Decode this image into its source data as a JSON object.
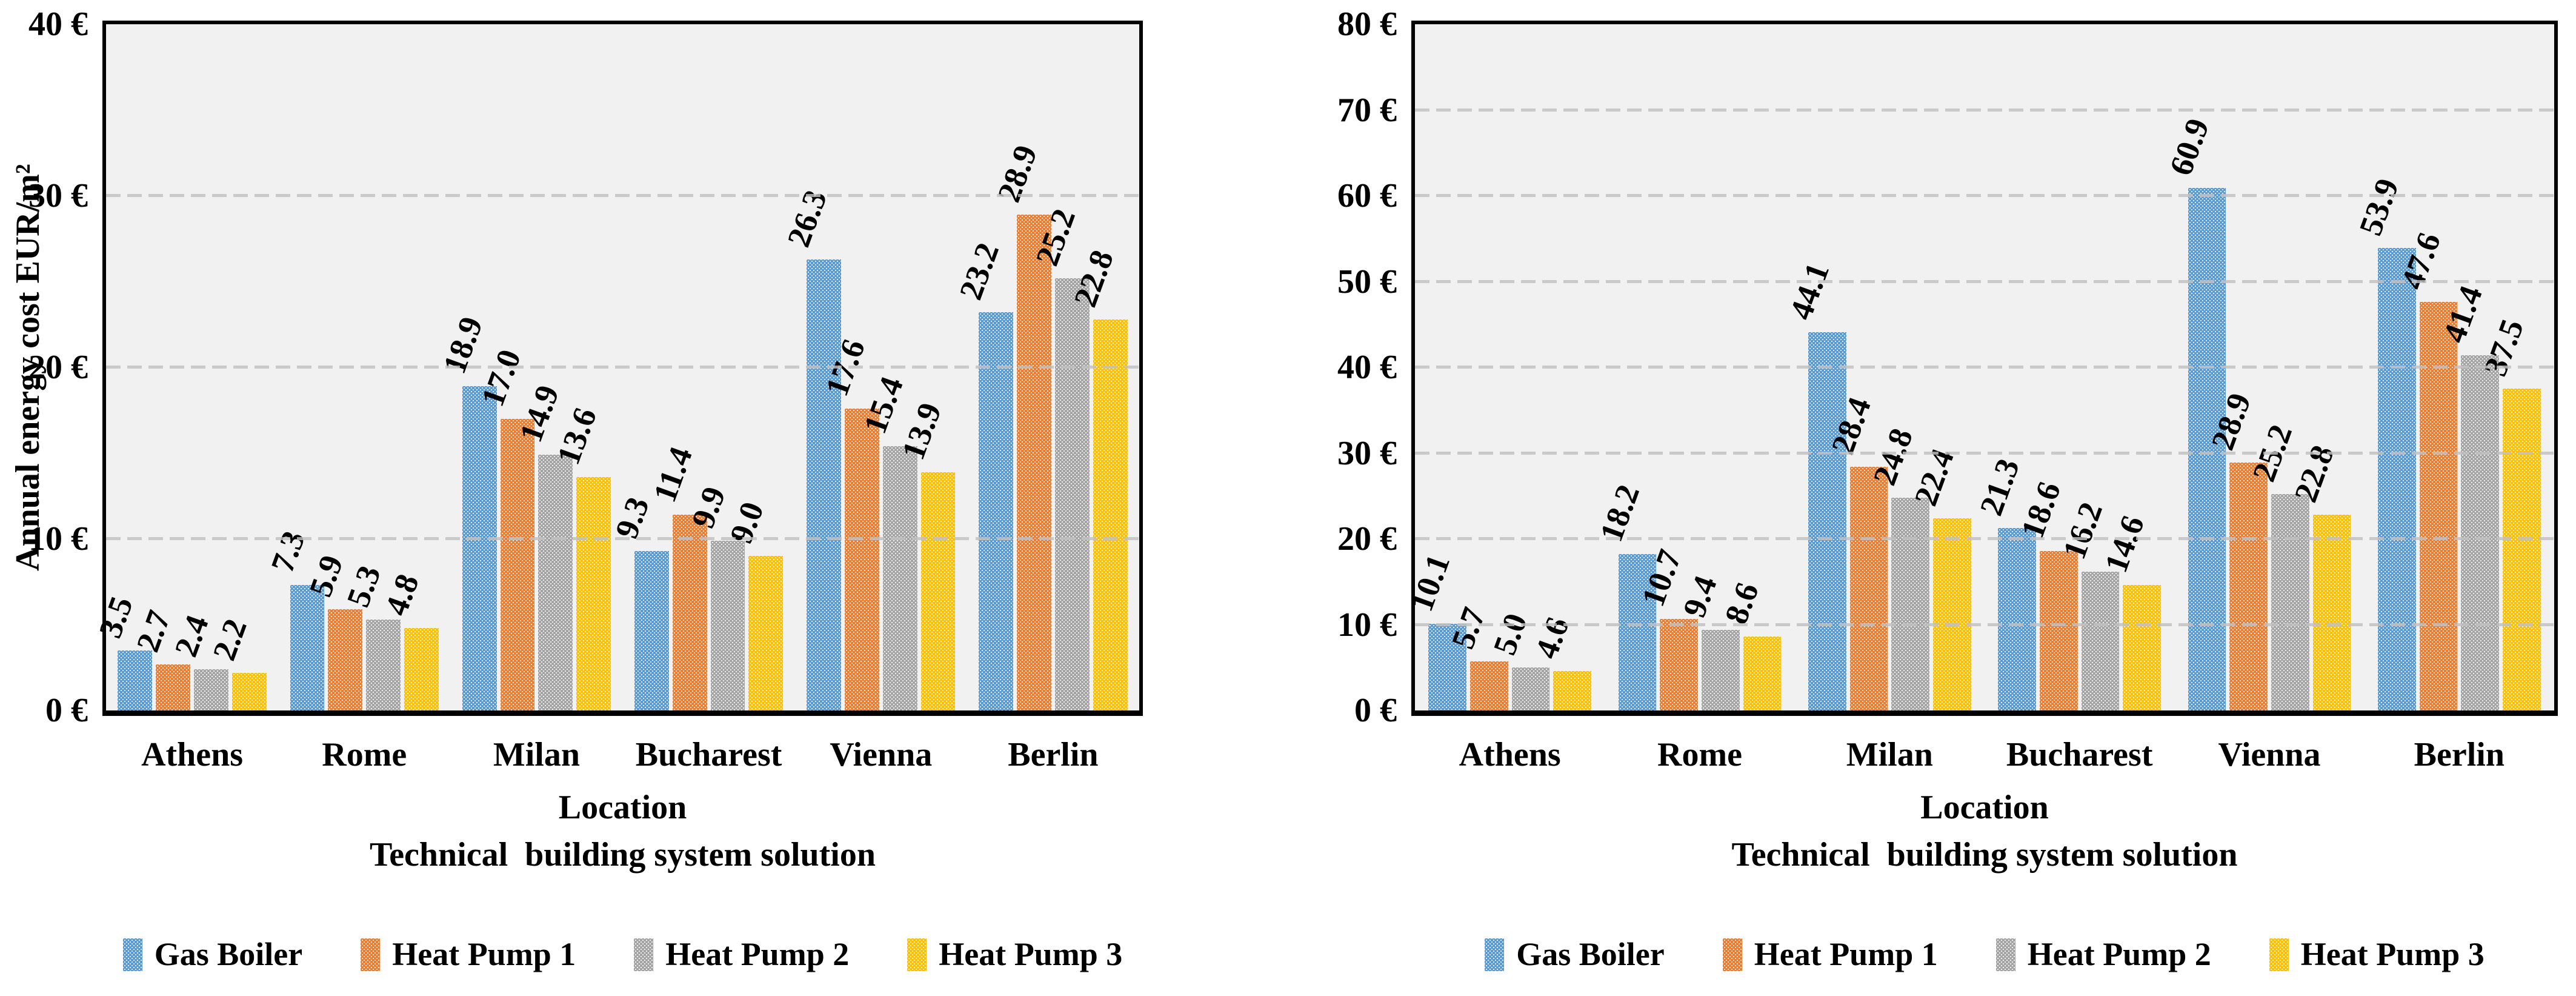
{
  "figure": {
    "background": "#ffffff",
    "plot_background": "#F1F1F1",
    "axis_color": "#000000",
    "gridline_color": "#C0C0C0",
    "gridline_style": "dashed"
  },
  "chart_data": [
    {
      "type": "bar",
      "title": "",
      "y_axis_title": "Annual energy cost EUR/m²",
      "x_axis_title_line1": "Location",
      "x_axis_title_line2": "Technical  building system solution",
      "ylim": [
        0,
        40
      ],
      "ytick_step": 10,
      "yticks": [
        "0 €",
        "10 €",
        "20 €",
        "30 €",
        "40 €"
      ],
      "grid": "horizontal-dashed",
      "legend_position": "bottom",
      "categories": [
        "Athens",
        "Rome",
        "Milan",
        "Bucharest",
        "Vienna",
        "Berlin"
      ],
      "series": [
        {
          "name": "Gas Boiler",
          "color": "#5B9BD5",
          "values": [
            3.5,
            7.3,
            18.9,
            9.3,
            26.3,
            23.2
          ],
          "labels": [
            "3.5",
            "7.3",
            "18.9",
            "9.3",
            "26.3",
            "23.2"
          ]
        },
        {
          "name": "Heat Pump 1",
          "color": "#ED7D31",
          "values": [
            2.7,
            5.9,
            17.0,
            11.4,
            17.6,
            28.9
          ],
          "labels": [
            "2.7",
            "5.9",
            "17.0",
            "11.4",
            "17.6",
            "28.9"
          ]
        },
        {
          "name": "Heat Pump 2",
          "color": "#A5A5A5",
          "values": [
            2.4,
            5.3,
            14.9,
            9.9,
            15.4,
            25.2
          ],
          "labels": [
            "2.4",
            "5.3",
            "14.9",
            "9.9",
            "15.4",
            "25.2"
          ]
        },
        {
          "name": "Heat Pump 3",
          "color": "#FFC000",
          "values": [
            2.2,
            4.8,
            13.6,
            9.0,
            13.9,
            22.8
          ],
          "labels": [
            "2.2",
            "4.8",
            "13.6",
            "9.0",
            "13.9",
            "22.8"
          ]
        }
      ]
    },
    {
      "type": "bar",
      "title": "",
      "y_axis_title": "",
      "x_axis_title_line1": "Location",
      "x_axis_title_line2": "Technical  building system solution",
      "ylim": [
        0,
        80
      ],
      "ytick_step": 10,
      "yticks": [
        "0 €",
        "10 €",
        "20 €",
        "30 €",
        "40 €",
        "50 €",
        "60 €",
        "70 €",
        "80 €"
      ],
      "grid": "horizontal-dashed",
      "legend_position": "bottom",
      "categories": [
        "Athens",
        "Rome",
        "Milan",
        "Bucharest",
        "Vienna",
        "Berlin"
      ],
      "series": [
        {
          "name": "Gas Boiler",
          "color": "#5B9BD5",
          "values": [
            10.1,
            18.2,
            44.1,
            21.3,
            60.9,
            53.9
          ],
          "labels": [
            "10.1",
            "18.2",
            "44.1",
            "21.3",
            "60.9",
            "53.9"
          ]
        },
        {
          "name": "Heat Pump 1",
          "color": "#ED7D31",
          "values": [
            5.7,
            10.7,
            28.4,
            18.6,
            28.9,
            47.6
          ],
          "labels": [
            "5.7",
            "10.7",
            "28.4",
            "18.6",
            "28.9",
            "47.6"
          ]
        },
        {
          "name": "Heat Pump 2",
          "color": "#A5A5A5",
          "values": [
            5.0,
            9.4,
            24.8,
            16.2,
            25.2,
            41.4
          ],
          "labels": [
            "5.0",
            "9.4",
            "24.8",
            "16.2",
            "25.2",
            "41.4"
          ]
        },
        {
          "name": "Heat Pump 3",
          "color": "#FFC000",
          "values": [
            4.6,
            8.6,
            22.4,
            14.6,
            22.8,
            37.5
          ],
          "labels": [
            "4.6",
            "8.6",
            "22.4",
            "14.6",
            "22.8",
            "37.5"
          ]
        }
      ]
    }
  ]
}
